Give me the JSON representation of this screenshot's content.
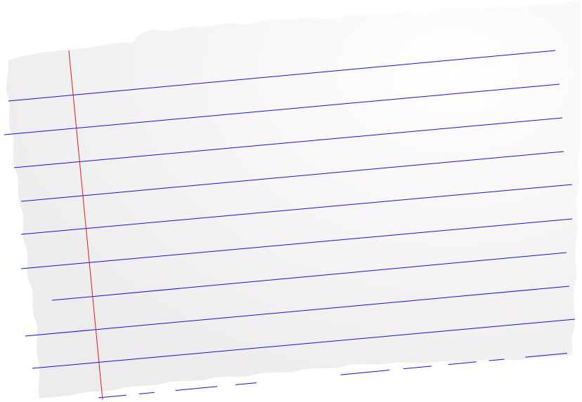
{
  "image": {
    "subject": "torn-sheet-of-lined-paper",
    "paper_color": "#f5f5f5",
    "paper_highlight": "#ffffff",
    "background_color": "#ffffff",
    "rule_line_color": "#1010e0",
    "margin_line_color": "#e01818",
    "rule_line_count": 10,
    "margin_line_count": 1
  }
}
